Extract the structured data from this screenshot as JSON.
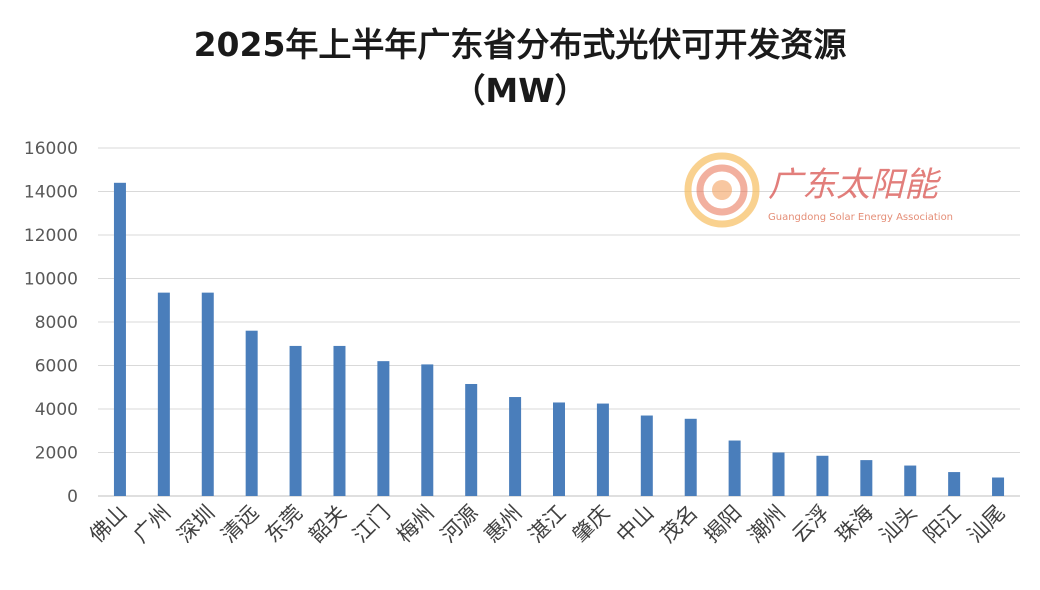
{
  "title_line1": "2025年上半年广东省分布式光伏可开发资源",
  "title_line2": "（MW）",
  "watermark": {
    "name": "广东太阳能",
    "subtitle": "Guangdong Solar Energy Association",
    "colors": [
      "#f4a261",
      "#e76f51",
      "#f6bd60"
    ]
  },
  "chart_data": {
    "type": "bar",
    "categories": [
      "佛山",
      "广州",
      "深圳",
      "清远",
      "东莞",
      "韶关",
      "江门",
      "梅州",
      "河源",
      "惠州",
      "湛江",
      "肇庆",
      "中山",
      "茂名",
      "揭阳",
      "潮州",
      "云浮",
      "珠海",
      "汕头",
      "阳江",
      "汕尾"
    ],
    "values": [
      14400,
      9350,
      9350,
      7600,
      6900,
      6900,
      6200,
      6050,
      5150,
      4550,
      4300,
      4250,
      3700,
      3550,
      2550,
      2000,
      1850,
      1650,
      1400,
      1100,
      850
    ],
    "ylim": [
      0,
      16000
    ],
    "yticks": [
      0,
      2000,
      4000,
      6000,
      8000,
      10000,
      12000,
      14000,
      16000
    ],
    "bar_color": "#4a7ebb",
    "grid": true,
    "legend": "none"
  }
}
